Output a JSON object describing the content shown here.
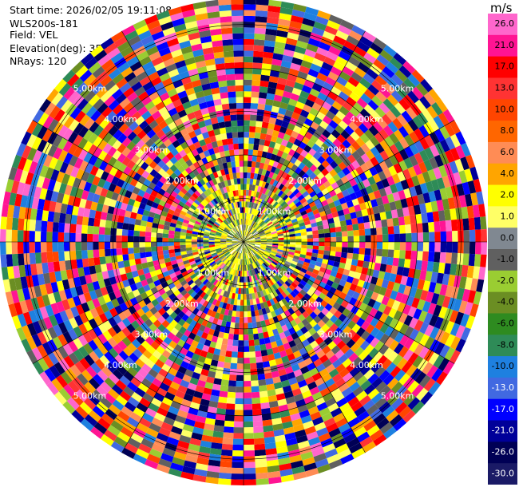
{
  "header": {
    "start_time": "Start time: 2026/02/05 19:11:08",
    "instrument": "WLS200s-181",
    "field": "Field: VEL",
    "elevation": "Elevation(deg): 35.00",
    "nrays": "NRays: 120"
  },
  "colorbar": {
    "unit": "m/s",
    "ticks": [
      "26.0",
      "21.0",
      "17.0",
      "13.0",
      "10.0",
      "8.0",
      "6.0",
      "4.0",
      "2.0",
      "1.0",
      "0.0",
      "-1.0",
      "-2.0",
      "-4.0",
      "-6.0",
      "-8.0",
      "-10.0",
      "-13.0",
      "-17.0",
      "-21.0",
      "-26.0",
      "-30.0"
    ],
    "colors": [
      "#ff66cc",
      "#ff1493",
      "#ff0000",
      "#ff3333",
      "#ff4500",
      "#ff6600",
      "#ff8c55",
      "#ffa500",
      "#ffff00",
      "#ffff66",
      "#808891",
      "#606060",
      "#9acd32",
      "#6b8e23",
      "#2e8b20",
      "#2e8b57",
      "#1e80e0",
      "#4169e1",
      "#0000ff",
      "#000099",
      "#000055",
      "#1a1a66"
    ]
  },
  "chart_data": {
    "type": "heatmap",
    "projection": "polar PPI",
    "field": "VEL",
    "nrays": 120,
    "range_ring_labels_km": [
      {
        "label": "1.00km",
        "range_km": 1
      },
      {
        "label": "2.00km",
        "range_km": 2
      },
      {
        "label": "3.00km",
        "range_km": 3
      },
      {
        "label": "4.00km",
        "range_km": 4
      },
      {
        "label": "5.00km",
        "range_km": 5
      }
    ],
    "value_range": [
      -30,
      26
    ],
    "grid": true
  }
}
